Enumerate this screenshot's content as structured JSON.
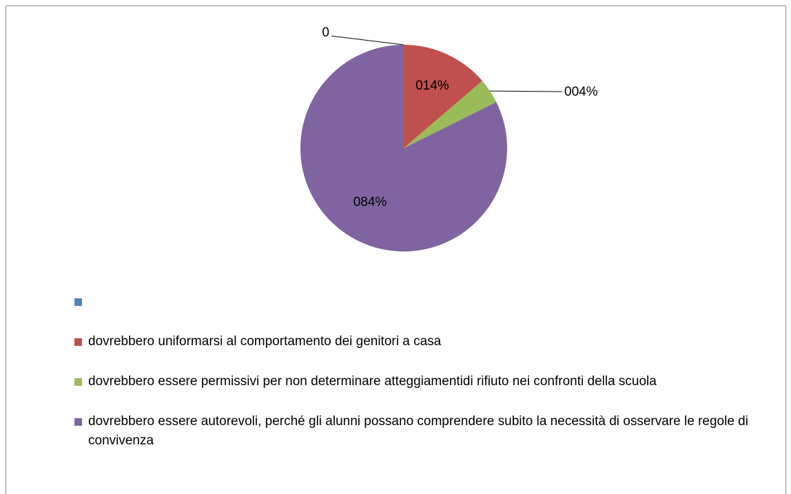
{
  "chart_data": {
    "type": "pie",
    "categories": [
      null,
      "dovrebbero uniformarsi al comportamento dei genitori a casa",
      "dovrebbero essere permissivi per non determinare atteggiamentidi rifiuto nei confronti della scuola",
      "dovrebbero essere autorevoli, perché gli alunni possano comprendere subito la necessità di osservare le regole di convivenza"
    ],
    "values": [
      0,
      14,
      4,
      84
    ],
    "value_labels": [
      "0",
      "014%",
      "004%",
      "084%"
    ],
    "colors": [
      "#4f81bd",
      "#c0504d",
      "#9bbb59",
      "#8064a2"
    ],
    "legend": "bottom"
  }
}
